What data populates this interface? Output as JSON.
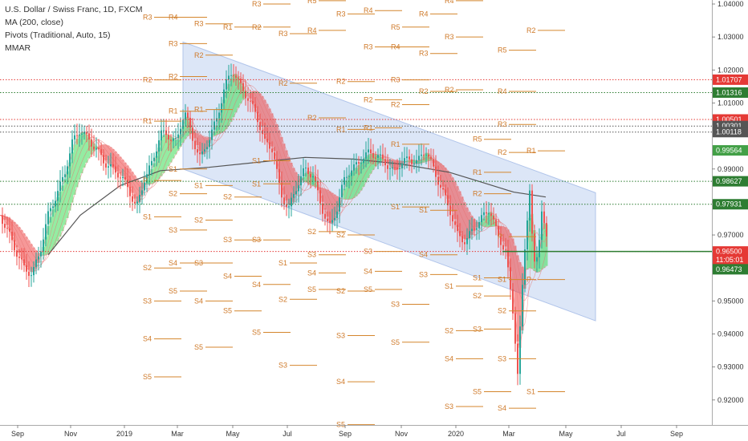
{
  "legend": {
    "title": "U.S. Dollar / Swiss Franc, 1D, FXCM",
    "ma": "MA (200, close)",
    "pivots": "Pivots (Traditional, Auto, 15)",
    "mmar": "MMAR"
  },
  "colors": {
    "up": "#26a69a",
    "down": "#ef5350",
    "ma": "#555555",
    "channel": "#c5d5f2",
    "pivot": "#d4862d",
    "ribbon_green": "#3ddc56",
    "ribbon_red": "#ef4444"
  },
  "chart_data": {
    "type": "line",
    "title": "U.S. Dollar / Swiss Franc, 1D, FXCM",
    "x_labels": [
      "Sep",
      "Nov",
      "2019",
      "Mar",
      "May",
      "Jul",
      "Sep",
      "Nov",
      "2020",
      "Mar",
      "May",
      "Jul",
      "Sep"
    ],
    "ylim": [
      0.9125,
      1.0425
    ],
    "y_ticks": [
      "1.04000",
      "1.03000",
      "1.02000",
      "1.01000",
      "0.99000",
      "0.98000",
      "0.97000",
      "0.95000",
      "0.94000",
      "0.93000",
      "0.92000"
    ],
    "price_tags": [
      {
        "value": "1.01707",
        "y": 1.01707,
        "color": "#e53935",
        "line": "dotted"
      },
      {
        "value": "1.01316",
        "y": 1.01316,
        "color": "#2e7d32",
        "line": "dotted"
      },
      {
        "value": "1.00501",
        "y": 1.00501,
        "color": "#e53935",
        "line": "dotted"
      },
      {
        "value": "1.00301",
        "y": 1.00301,
        "color": "#555555",
        "line": "dotted"
      },
      {
        "value": "1.00118",
        "y": 1.00118,
        "color": "#555555",
        "line": "dotted"
      },
      {
        "value": "0.99564",
        "y": 0.99564,
        "color": "#43a047",
        "line": "none"
      },
      {
        "value": "0.98627",
        "y": 0.98627,
        "color": "#2e7d32",
        "line": "dotted"
      },
      {
        "value": "0.97931",
        "y": 0.97931,
        "color": "#2e7d32",
        "line": "dotted"
      },
      {
        "value": "0.96500",
        "y": 0.965,
        "color": "#e53935",
        "line": "dotted"
      },
      {
        "value": "11:05:01",
        "y": 0.9625,
        "color": "#e53935",
        "line": "none"
      },
      {
        "value": "0.96473",
        "y": 0.9596,
        "color": "#2e7d32",
        "line": "solid"
      }
    ],
    "series": [
      {
        "name": "USDCHF close",
        "points": [
          [
            0,
            0.976
          ],
          [
            10,
            0.971
          ],
          [
            20,
            0.965
          ],
          [
            30,
            0.96
          ],
          [
            40,
            0.958
          ],
          [
            50,
            0.965
          ],
          [
            60,
            0.976
          ],
          [
            70,
            0.982
          ],
          [
            80,
            0.988
          ],
          [
            90,
            0.998
          ],
          [
            100,
            1.002
          ],
          [
            110,
            0.999
          ],
          [
            120,
            0.996
          ],
          [
            130,
            0.992
          ],
          [
            140,
            0.99
          ],
          [
            150,
            0.988
          ],
          [
            160,
            0.984
          ],
          [
            170,
            0.978
          ],
          [
            180,
            0.987
          ],
          [
            190,
            0.992
          ],
          [
            200,
            1.001
          ],
          [
            210,
            1.0
          ],
          [
            220,
            0.998
          ],
          [
            230,
            1.008
          ],
          [
            240,
            0.999
          ],
          [
            250,
            0.993
          ],
          [
            260,
            0.999
          ],
          [
            270,
            1.005
          ],
          [
            280,
            1.015
          ],
          [
            290,
            1.02
          ],
          [
            300,
            1.015
          ],
          [
            310,
            1.011
          ],
          [
            320,
            1.006
          ],
          [
            330,
            0.998
          ],
          [
            340,
            0.996
          ],
          [
            350,
            0.982
          ],
          [
            360,
            0.978
          ],
          [
            370,
            0.985
          ],
          [
            380,
            0.99
          ],
          [
            390,
            0.988
          ],
          [
            400,
            0.979
          ],
          [
            410,
            0.972
          ],
          [
            420,
            0.978
          ],
          [
            430,
            0.988
          ],
          [
            440,
            0.99
          ],
          [
            450,
            0.993
          ],
          [
            460,
            0.995
          ],
          [
            470,
            0.994
          ],
          [
            480,
            0.992
          ],
          [
            490,
            0.989
          ],
          [
            500,
            0.992
          ],
          [
            510,
            0.993
          ],
          [
            520,
            0.992
          ],
          [
            530,
            0.996
          ],
          [
            540,
            0.99
          ],
          [
            550,
            0.984
          ],
          [
            560,
            0.978
          ],
          [
            570,
            0.97
          ],
          [
            580,
            0.968
          ],
          [
            590,
            0.972
          ],
          [
            600,
            0.975
          ],
          [
            610,
            0.978
          ],
          [
            620,
            0.97
          ],
          [
            630,
            0.965
          ],
          [
            640,
            0.945
          ],
          [
            645,
            0.928
          ],
          [
            650,
            0.95
          ],
          [
            655,
            0.97
          ],
          [
            660,
            0.984
          ],
          [
            665,
            0.96
          ],
          [
            670,
            0.964
          ],
          [
            675,
            0.978
          ],
          [
            680,
            0.97
          ],
          [
            683,
            0.965
          ]
        ]
      },
      {
        "name": "MA (200, close)",
        "points": [
          [
            60,
            0.964
          ],
          [
            100,
            0.976
          ],
          [
            150,
            0.985
          ],
          [
            200,
            0.9895
          ],
          [
            260,
            0.9905
          ],
          [
            320,
            0.992
          ],
          [
            380,
            0.9935
          ],
          [
            440,
            0.993
          ],
          [
            500,
            0.9915
          ],
          [
            560,
            0.989
          ],
          [
            600,
            0.986
          ],
          [
            640,
            0.983
          ],
          [
            680,
            0.9815
          ]
        ]
      }
    ],
    "channel": {
      "x1": 228,
      "x2": 742,
      "top_start": 1.0285,
      "top_end": 0.9828,
      "bot_start": 0.99,
      "bot_end": 0.944
    },
    "pivots": [
      {
        "label": "R4",
        "x": 212,
        "y": 1.0425
      },
      {
        "label": "R4",
        "x": 349,
        "y": 1.042
      },
      {
        "label": "R5",
        "x": 385,
        "y": 1.041
      },
      {
        "label": "R4",
        "x": 556,
        "y": 1.041
      },
      {
        "label": "R3",
        "x": 316,
        "y": 1.04
      },
      {
        "label": "R4",
        "x": 455,
        "y": 1.038
      },
      {
        "label": "R3",
        "x": 421,
        "y": 1.037
      },
      {
        "label": "R4",
        "x": 524,
        "y": 1.037
      },
      {
        "label": "R3",
        "x": 180,
        "y": 1.036
      },
      {
        "label": "R4",
        "x": 212,
        "y": 1.036
      },
      {
        "label": "R3",
        "x": 244,
        "y": 1.034
      },
      {
        "label": "R1",
        "x": 280,
        "y": 1.033
      },
      {
        "label": "R2",
        "x": 316,
        "y": 1.033
      },
      {
        "label": "R5",
        "x": 489,
        "y": 1.033
      },
      {
        "label": "R4",
        "x": 385,
        "y": 1.032
      },
      {
        "label": "R3",
        "x": 349,
        "y": 1.031
      },
      {
        "label": "R2",
        "x": 658,
        "y": 1.032
      },
      {
        "label": "R3",
        "x": 556,
        "y": 1.03
      },
      {
        "label": "R3",
        "x": 455,
        "y": 1.027
      },
      {
        "label": "R4",
        "x": 489,
        "y": 1.027
      },
      {
        "label": "R5",
        "x": 622,
        "y": 1.026
      },
      {
        "label": "R3",
        "x": 212,
        "y": 1.028
      },
      {
        "label": "R3",
        "x": 524,
        "y": 1.025
      },
      {
        "label": "R2",
        "x": 244,
        "y": 1.0245
      },
      {
        "label": "R2",
        "x": 212,
        "y": 1.018
      },
      {
        "label": "R2",
        "x": 180,
        "y": 1.017
      },
      {
        "label": "R2",
        "x": 421,
        "y": 1.0165
      },
      {
        "label": "R3",
        "x": 489,
        "y": 1.017
      },
      {
        "label": "R2",
        "x": 349,
        "y": 1.016
      },
      {
        "label": "R2",
        "x": 556,
        "y": 1.014
      },
      {
        "label": "R2",
        "x": 524,
        "y": 1.0135
      },
      {
        "label": "R4",
        "x": 622,
        "y": 1.0135
      },
      {
        "label": "R2",
        "x": 455,
        "y": 1.011
      },
      {
        "label": "R2",
        "x": 489,
        "y": 1.0095
      },
      {
        "label": "R1",
        "x": 244,
        "y": 1.008
      },
      {
        "label": "R1",
        "x": 212,
        "y": 1.0075
      },
      {
        "label": "R1",
        "x": 180,
        "y": 1.0045
      },
      {
        "label": "R2",
        "x": 385,
        "y": 1.0055
      },
      {
        "label": "R3",
        "x": 622,
        "y": 1.0035
      },
      {
        "label": "R1",
        "x": 455,
        "y": 1.0025
      },
      {
        "label": "R1",
        "x": 421,
        "y": 1.002
      },
      {
        "label": "R5",
        "x": 591,
        "y": 0.999
      },
      {
        "label": "R1",
        "x": 489,
        "y": 0.9975
      },
      {
        "label": "R2",
        "x": 622,
        "y": 0.995
      },
      {
        "label": "R1",
        "x": 658,
        "y": 0.9955
      },
      {
        "label": "P",
        "x": 180,
        "y": 0.9865
      },
      {
        "label": "S1",
        "x": 212,
        "y": 0.99
      },
      {
        "label": "S1",
        "x": 316,
        "y": 0.9925
      },
      {
        "label": "S1",
        "x": 244,
        "y": 0.985
      },
      {
        "label": "S1",
        "x": 316,
        "y": 0.9855
      },
      {
        "label": "S2",
        "x": 212,
        "y": 0.9825
      },
      {
        "label": "S2",
        "x": 280,
        "y": 0.9815
      },
      {
        "label": "R1",
        "x": 591,
        "y": 0.989
      },
      {
        "label": "R2",
        "x": 591,
        "y": 0.9825
      },
      {
        "label": "S1",
        "x": 180,
        "y": 0.9755
      },
      {
        "label": "S2",
        "x": 244,
        "y": 0.9745
      },
      {
        "label": "S1",
        "x": 489,
        "y": 0.9785
      },
      {
        "label": "S1",
        "x": 524,
        "y": 0.9775
      },
      {
        "label": "S3",
        "x": 212,
        "y": 0.9715
      },
      {
        "label": "S3",
        "x": 280,
        "y": 0.9685
      },
      {
        "label": "S3",
        "x": 316,
        "y": 0.9685
      },
      {
        "label": "S2",
        "x": 385,
        "y": 0.971
      },
      {
        "label": "S2",
        "x": 421,
        "y": 0.97
      },
      {
        "label": "S3",
        "x": 455,
        "y": 0.965
      },
      {
        "label": "S3",
        "x": 385,
        "y": 0.964
      },
      {
        "label": "S4",
        "x": 524,
        "y": 0.964
      },
      {
        "label": "P",
        "x": 622,
        "y": 0.9695
      },
      {
        "label": "S4",
        "x": 212,
        "y": 0.9615
      },
      {
        "label": "S3",
        "x": 244,
        "y": 0.9615
      },
      {
        "label": "S1",
        "x": 349,
        "y": 0.9615
      },
      {
        "label": "S2",
        "x": 180,
        "y": 0.96
      },
      {
        "label": "S4",
        "x": 280,
        "y": 0.9575
      },
      {
        "label": "S4",
        "x": 385,
        "y": 0.9585
      },
      {
        "label": "S4",
        "x": 455,
        "y": 0.959
      },
      {
        "label": "S3",
        "x": 524,
        "y": 0.958
      },
      {
        "label": "S4",
        "x": 316,
        "y": 0.955
      },
      {
        "label": "S5",
        "x": 212,
        "y": 0.953
      },
      {
        "label": "S5",
        "x": 385,
        "y": 0.9535
      },
      {
        "label": "S2",
        "x": 421,
        "y": 0.953
      },
      {
        "label": "S5",
        "x": 455,
        "y": 0.9535
      },
      {
        "label": "S1",
        "x": 591,
        "y": 0.957
      },
      {
        "label": "S1",
        "x": 556,
        "y": 0.9545
      },
      {
        "label": "S1",
        "x": 622,
        "y": 0.9565
      },
      {
        "label": "P",
        "x": 658,
        "y": 0.9565
      },
      {
        "label": "S2",
        "x": 591,
        "y": 0.9515
      },
      {
        "label": "S3",
        "x": 180,
        "y": 0.95
      },
      {
        "label": "S4",
        "x": 244,
        "y": 0.95
      },
      {
        "label": "S2",
        "x": 349,
        "y": 0.9505
      },
      {
        "label": "S3",
        "x": 489,
        "y": 0.949
      },
      {
        "label": "S5",
        "x": 280,
        "y": 0.947
      },
      {
        "label": "S2",
        "x": 622,
        "y": 0.947
      },
      {
        "label": "S3",
        "x": 591,
        "y": 0.9415
      },
      {
        "label": "S2",
        "x": 556,
        "y": 0.941
      },
      {
        "label": "S5",
        "x": 316,
        "y": 0.9405
      },
      {
        "label": "S3",
        "x": 421,
        "y": 0.9395
      },
      {
        "label": "S4",
        "x": 180,
        "y": 0.9385
      },
      {
        "label": "S5",
        "x": 489,
        "y": 0.9375
      },
      {
        "label": "S5",
        "x": 244,
        "y": 0.936
      },
      {
        "label": "S4",
        "x": 556,
        "y": 0.9325
      },
      {
        "label": "S3",
        "x": 622,
        "y": 0.9325
      },
      {
        "label": "S3",
        "x": 349,
        "y": 0.9305
      },
      {
        "label": "S5",
        "x": 180,
        "y": 0.927
      },
      {
        "label": "S4",
        "x": 421,
        "y": 0.9255
      },
      {
        "label": "S5",
        "x": 591,
        "y": 0.9225
      },
      {
        "label": "S1",
        "x": 658,
        "y": 0.9225
      },
      {
        "label": "S3",
        "x": 556,
        "y": 0.918
      },
      {
        "label": "S4",
        "x": 622,
        "y": 0.9175
      },
      {
        "label": "S5",
        "x": 421,
        "y": 0.9125
      }
    ]
  }
}
